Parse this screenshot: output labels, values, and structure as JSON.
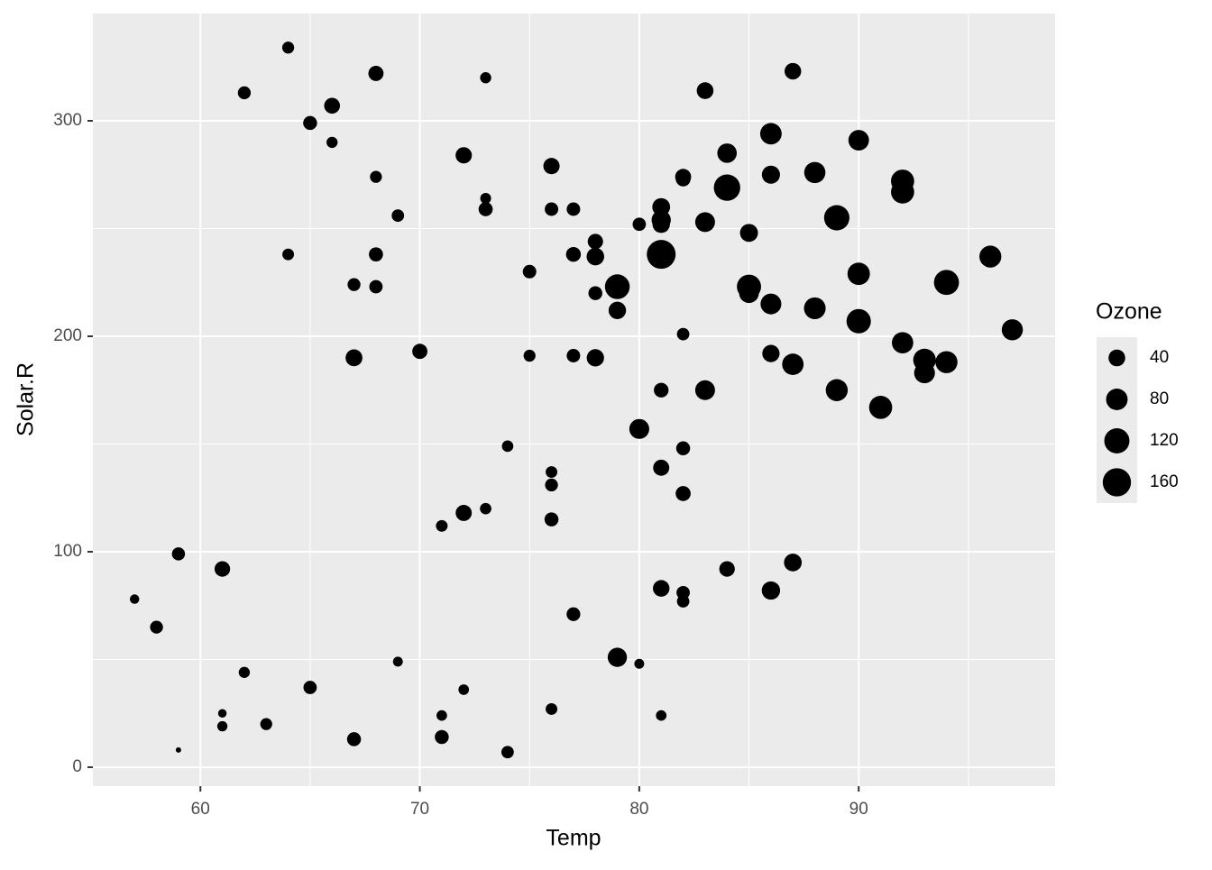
{
  "chart_data": {
    "type": "scatter",
    "x_label": "Temp",
    "y_label": "Solar.R",
    "color": "#000000",
    "x": [
      67,
      72,
      74,
      62,
      65,
      59,
      61,
      69,
      66,
      68,
      58,
      64,
      66,
      57,
      68,
      62,
      59,
      73,
      61,
      61,
      67,
      81,
      79,
      76,
      82,
      90,
      87,
      82,
      77,
      72,
      65,
      73,
      76,
      84,
      85,
      81,
      83,
      83,
      88,
      92,
      92,
      89,
      73,
      81,
      80,
      81,
      82,
      84,
      87,
      85,
      74,
      86,
      85,
      82,
      86,
      88,
      86,
      83,
      81,
      81,
      81,
      82,
      89,
      90,
      90,
      86,
      82,
      80,
      77,
      79,
      76,
      78,
      78,
      77,
      72,
      79,
      81,
      86,
      97,
      94,
      96,
      94,
      91,
      92,
      93,
      93,
      87,
      84,
      80,
      78,
      75,
      73,
      81,
      76,
      77,
      71,
      71,
      78,
      67,
      76,
      68,
      82,
      64,
      71,
      81,
      69,
      63,
      70,
      75,
      76,
      68
    ],
    "values": [
      190,
      118,
      149,
      313,
      299,
      99,
      19,
      256,
      290,
      274,
      65,
      334,
      307,
      78,
      322,
      44,
      8,
      320,
      25,
      92,
      13,
      252,
      223,
      279,
      127,
      291,
      323,
      148,
      191,
      284,
      37,
      120,
      137,
      269,
      248,
      236,
      175,
      314,
      276,
      267,
      272,
      175,
      264,
      175,
      48,
      260,
      274,
      285,
      187,
      220,
      7,
      294,
      223,
      81,
      82,
      213,
      275,
      253,
      254,
      83,
      24,
      77,
      255,
      229,
      207,
      192,
      273,
      157,
      71,
      51,
      115,
      244,
      190,
      259,
      36,
      212,
      238,
      215,
      203,
      225,
      237,
      188,
      167,
      197,
      183,
      189,
      95,
      92,
      252,
      220,
      230,
      259,
      236,
      259,
      238,
      24,
      112,
      237,
      224,
      27,
      238,
      201,
      238,
      14,
      139,
      49,
      20,
      193,
      191,
      131,
      223
    ],
    "size": [
      41,
      36,
      12,
      18,
      23,
      19,
      8,
      16,
      11,
      14,
      18,
      14,
      34,
      6,
      30,
      11,
      1,
      11,
      4,
      32,
      23,
      45,
      115,
      37,
      29,
      71,
      39,
      23,
      21,
      37,
      20,
      12,
      13,
      135,
      49,
      32,
      64,
      40,
      77,
      97,
      97,
      85,
      10,
      27,
      7,
      48,
      35,
      61,
      79,
      63,
      16,
      80,
      108,
      20,
      52,
      82,
      50,
      64,
      59,
      39,
      9,
      16,
      122,
      89,
      110,
      44,
      28,
      65,
      22,
      59,
      23,
      31,
      44,
      21,
      9,
      45,
      168,
      73,
      76,
      118,
      84,
      85,
      96,
      78,
      73,
      91,
      47,
      32,
      20,
      23,
      21,
      24,
      44,
      21,
      28,
      9,
      13,
      46,
      18,
      13,
      24,
      16,
      13,
      23,
      36,
      7,
      14,
      30,
      14,
      18,
      20
    ],
    "size_label": "Ozone",
    "size_breaks": [
      40,
      80,
      120,
      160
    ],
    "legend": "right",
    "xlim": [
      55.1,
      98.95
    ],
    "xticks": [
      60,
      70,
      80,
      90
    ],
    "xminor": [
      65,
      75,
      85,
      95
    ],
    "ylim": [
      -8.8,
      349.8
    ],
    "yticks": [
      0,
      100,
      200,
      300
    ],
    "yminor": [
      50,
      150,
      250
    ],
    "grid": true
  }
}
